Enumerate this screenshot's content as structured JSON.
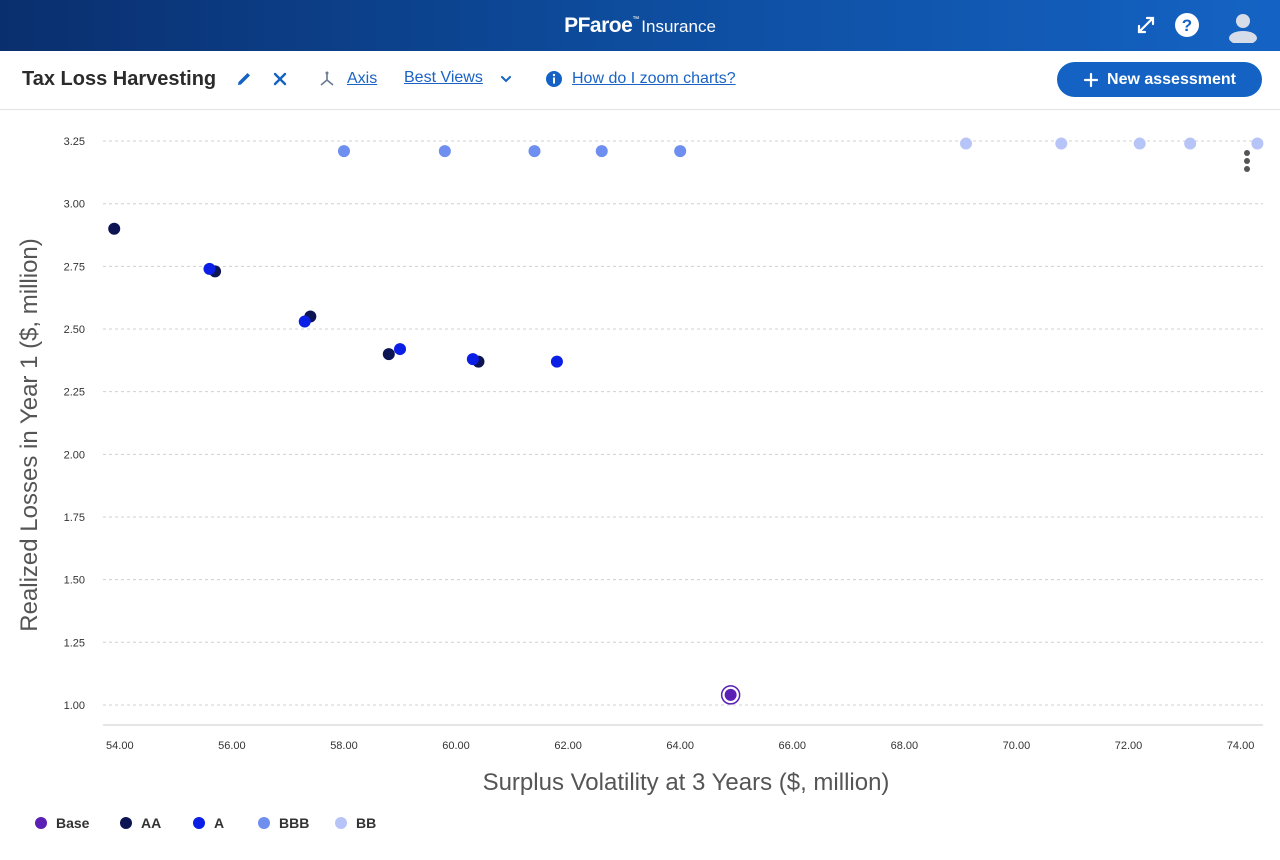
{
  "header": {
    "brand_logo": "PFaroe",
    "brand_tm": "™",
    "brand_product": "Insurance",
    "background": "#0d4a9a"
  },
  "toolbar": {
    "title": "Tax Loss Harvesting",
    "axis_label": "Axis",
    "best_views_label": "Best Views",
    "zoom_help_label": "How do I zoom charts?",
    "new_assessment_label": "New assessment"
  },
  "colors": {
    "accent": "#1463c4",
    "base": "#5b1fb5",
    "AA": "#0d1454",
    "A": "#0a1ee6",
    "BBB": "#6e8ef0",
    "BB": "#b7c4f7"
  },
  "chart_data": {
    "type": "scatter",
    "xlabel": "Surplus Volatility at 3 Years ($, million)",
    "ylabel": "Realized Losses in Year 1 ($, million)",
    "xlim": [
      53.7,
      74.4
    ],
    "ylim": [
      0.92,
      3.33
    ],
    "x_ticks": [
      "54.00",
      "56.00",
      "58.00",
      "60.00",
      "62.00",
      "64.00",
      "66.00",
      "68.00",
      "70.00",
      "72.00",
      "74.00"
    ],
    "y_ticks": [
      "1.00",
      "1.25",
      "1.50",
      "1.75",
      "2.00",
      "2.25",
      "2.50",
      "2.75",
      "3.00",
      "3.25"
    ],
    "grid": "horizontal",
    "legend_placement": "bottom-left",
    "series": [
      {
        "name": "Base",
        "color": "#5b1fb5",
        "points": [
          [
            64.9,
            1.04
          ]
        ]
      },
      {
        "name": "AA",
        "color": "#0d1454",
        "points": [
          [
            53.9,
            2.9
          ],
          [
            55.7,
            2.73
          ],
          [
            57.4,
            2.55
          ],
          [
            58.8,
            2.4
          ],
          [
            60.4,
            2.37
          ]
        ]
      },
      {
        "name": "A",
        "color": "#0a1ee6",
        "points": [
          [
            55.6,
            2.74
          ],
          [
            57.3,
            2.53
          ],
          [
            59.0,
            2.42
          ],
          [
            60.3,
            2.38
          ],
          [
            61.8,
            2.37
          ]
        ]
      },
      {
        "name": "BBB",
        "color": "#6e8ef0",
        "points": [
          [
            58.0,
            3.21
          ],
          [
            59.8,
            3.21
          ],
          [
            61.4,
            3.21
          ],
          [
            62.6,
            3.21
          ],
          [
            64.0,
            3.21
          ]
        ]
      },
      {
        "name": "BB",
        "color": "#b7c4f7",
        "points": [
          [
            69.1,
            3.24
          ],
          [
            70.8,
            3.24
          ],
          [
            72.2,
            3.24
          ],
          [
            73.1,
            3.24
          ],
          [
            74.3,
            3.24
          ]
        ]
      }
    ]
  }
}
